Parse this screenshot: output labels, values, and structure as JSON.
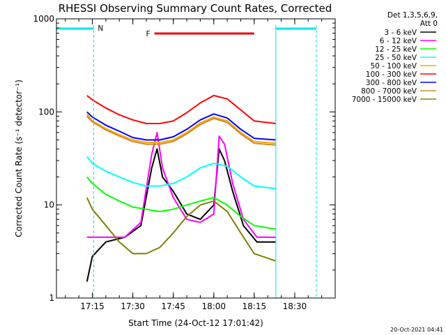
{
  "chart_data": {
    "type": "line",
    "title": "RHESSI Observing Summary Count Rates, Corrected",
    "xlabel": "Start Time (24-Oct-12 17:01:42)",
    "ylabel": "Corrected Count Rate (s⁻¹ detector⁻¹)",
    "y_scale": "log",
    "ylim": [
      1,
      1000
    ],
    "xlim": [
      "17:01:42",
      "18:45:00"
    ],
    "x_ticks": [
      "17:15",
      "17:30",
      "17:45",
      "18:00",
      "18:15",
      "18:30"
    ],
    "y_ticks": [
      "1",
      "10",
      "100",
      "1000"
    ],
    "legend_header": [
      "Det 1,3,5,6,9,",
      "Att 0"
    ],
    "legend_position": "right",
    "timestamp": "20-Oct-2021 04:41",
    "bars": {
      "N_label": "N",
      "F_label": "F",
      "N_segments": [
        [
          "17:01:42",
          "17:15:30"
        ],
        [
          "18:23:00",
          "18:38:00"
        ]
      ],
      "F_segment": [
        "17:38:00",
        "18:15:00"
      ],
      "N_dashed_x": [
        "17:15:30",
        "18:38:00"
      ],
      "N_solid_x": [
        "17:01:42",
        "18:23:00"
      ]
    },
    "series": [
      {
        "name": "3 - 6 keV",
        "color": "#000000",
        "x": [
          "17:13:00",
          "17:15:00",
          "17:20:00",
          "17:27:00",
          "17:33:00",
          "17:37:00",
          "17:39:00",
          "17:41:00",
          "17:45:00",
          "17:50:00",
          "17:55:00",
          "18:00:00",
          "18:02:00",
          "18:04:00",
          "18:07:00",
          "18:11:00",
          "18:16:00",
          "18:21:00",
          "18:23:00"
        ],
        "values": [
          1.5,
          2.8,
          4.0,
          4.5,
          6.0,
          25,
          40,
          20,
          14,
          8,
          7,
          10,
          40,
          30,
          14,
          6,
          4,
          4,
          4
        ]
      },
      {
        "name": "6 - 12 keV",
        "color": "#ff00ff",
        "x": [
          "17:13:00",
          "17:15:00",
          "17:20:00",
          "17:27:00",
          "17:33:00",
          "17:37:00",
          "17:39:00",
          "17:41:00",
          "17:45:00",
          "17:50:00",
          "17:55:00",
          "18:00:00",
          "18:02:00",
          "18:04:00",
          "18:07:00",
          "18:11:00",
          "18:16:00",
          "18:21:00",
          "18:23:00"
        ],
        "values": [
          4.5,
          4.5,
          4.5,
          4.5,
          6.5,
          35,
          60,
          25,
          12,
          7,
          6.5,
          8,
          55,
          45,
          17,
          7,
          4.5,
          4.5,
          4.5
        ]
      },
      {
        "name": "12 - 25 keV",
        "color": "#00ff00",
        "x": [
          "17:13:00",
          "17:15:00",
          "17:20:00",
          "17:25:00",
          "17:30:00",
          "17:35:00",
          "17:40:00",
          "17:45:00",
          "17:50:00",
          "17:55:00",
          "18:00:00",
          "18:05:00",
          "18:10:00",
          "18:15:00",
          "18:23:00"
        ],
        "values": [
          20,
          17,
          13,
          11,
          9.5,
          9,
          8.5,
          9,
          10,
          11,
          12,
          10,
          7.5,
          6,
          5.5
        ]
      },
      {
        "name": "25 - 50 keV",
        "color": "#00ffff",
        "x": [
          "17:13:00",
          "17:15:00",
          "17:20:00",
          "17:25:00",
          "17:30:00",
          "17:35:00",
          "17:40:00",
          "17:45:00",
          "17:50:00",
          "17:55:00",
          "18:00:00",
          "18:05:00",
          "18:10:00",
          "18:15:00",
          "18:23:00"
        ],
        "values": [
          33,
          28,
          23,
          20,
          17.5,
          16,
          16,
          17,
          20,
          25,
          28,
          26,
          20,
          16,
          15
        ]
      },
      {
        "name": "50 - 100 keV",
        "color": "#ffa500",
        "x": [
          "17:13:00",
          "17:15:00",
          "17:20:00",
          "17:25:00",
          "17:30:00",
          "17:35:00",
          "17:40:00",
          "17:45:00",
          "17:50:00",
          "17:55:00",
          "18:00:00",
          "18:05:00",
          "18:10:00",
          "18:15:00",
          "18:23:00"
        ],
        "values": [
          95,
          80,
          66,
          57,
          50,
          47,
          47,
          50,
          60,
          76,
          88,
          80,
          60,
          48,
          46
        ]
      },
      {
        "name": "100 - 300 keV",
        "color": "#ff0000",
        "x": [
          "17:13:00",
          "17:15:00",
          "17:20:00",
          "17:25:00",
          "17:30:00",
          "17:35:00",
          "17:40:00",
          "17:45:00",
          "17:50:00",
          "17:55:00",
          "18:00:00",
          "18:05:00",
          "18:10:00",
          "18:15:00",
          "18:23:00"
        ],
        "values": [
          150,
          135,
          110,
          93,
          82,
          75,
          75,
          80,
          98,
          125,
          150,
          138,
          105,
          80,
          75
        ]
      },
      {
        "name": "300 - 800 keV",
        "color": "#0000ff",
        "x": [
          "17:13:00",
          "17:15:00",
          "17:20:00",
          "17:25:00",
          "17:30:00",
          "17:35:00",
          "17:40:00",
          "17:45:00",
          "17:50:00",
          "17:55:00",
          "18:00:00",
          "18:05:00",
          "18:10:00",
          "18:15:00",
          "18:23:00"
        ],
        "values": [
          100,
          88,
          72,
          62,
          53,
          50,
          50,
          54,
          65,
          82,
          95,
          86,
          65,
          52,
          50
        ]
      },
      {
        "name": "800 - 7000 keV",
        "color": "#cd8c2d",
        "x": [
          "17:13:00",
          "17:15:00",
          "17:20:00",
          "17:25:00",
          "17:30:00",
          "17:35:00",
          "17:40:00",
          "17:45:00",
          "17:50:00",
          "17:55:00",
          "18:00:00",
          "18:05:00",
          "18:10:00",
          "18:15:00",
          "18:23:00"
        ],
        "values": [
          90,
          78,
          64,
          55,
          48,
          45,
          45,
          48,
          58,
          73,
          85,
          77,
          58,
          46,
          44
        ]
      },
      {
        "name": "7000 - 15000 keV",
        "color": "#808000",
        "x": [
          "17:13:00",
          "17:15:00",
          "17:20:00",
          "17:25:00",
          "17:30:00",
          "17:35:00",
          "17:40:00",
          "17:45:00",
          "17:50:00",
          "17:55:00",
          "18:00:00",
          "18:05:00",
          "18:10:00",
          "18:15:00",
          "18:23:00"
        ],
        "values": [
          12,
          9,
          6,
          4,
          3,
          3,
          3.5,
          5,
          7.5,
          10,
          11,
          8.5,
          5,
          3,
          2.5
        ]
      }
    ]
  }
}
